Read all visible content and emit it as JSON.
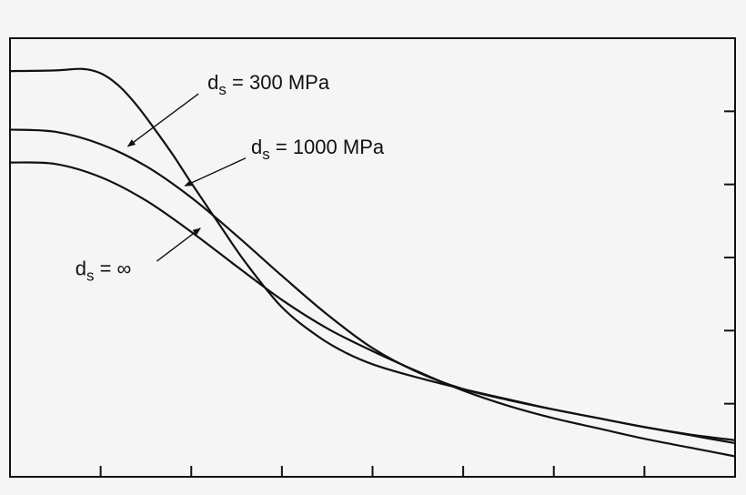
{
  "chart_data": {
    "type": "line",
    "title": "",
    "xlabel": "",
    "ylabel": "",
    "xlim": [
      0,
      8
    ],
    "ylim": [
      0,
      6
    ],
    "x_tick_count": 8,
    "y_tick_count": 6,
    "tick_labels_shown": false,
    "grid": false,
    "legend": "none",
    "line_color": "#111111",
    "series": [
      {
        "name": "d_s = 300 MPa",
        "label_main": "d",
        "label_sub": "s",
        "label_rest": " = 300 MPa",
        "x": [
          0,
          0.5,
          0.8,
          1.0,
          1.2,
          1.4,
          1.6,
          1.8,
          2.0,
          2.3,
          2.6,
          3.0,
          3.4,
          3.7,
          4.0,
          4.4,
          5.0,
          5.6,
          6.0,
          6.5,
          7.0,
          7.5,
          8.0
        ],
        "y": [
          5.55,
          5.56,
          5.58,
          5.52,
          5.35,
          5.08,
          4.75,
          4.4,
          4.02,
          3.47,
          2.93,
          2.32,
          1.92,
          1.7,
          1.54,
          1.39,
          1.2,
          1.03,
          0.92,
          0.8,
          0.68,
          0.57,
          0.46
        ]
      },
      {
        "name": "d_s = 1000 MPa",
        "label_main": "d",
        "label_sub": "s",
        "label_rest": " = 1000 MPa",
        "x": [
          0,
          0.5,
          1.0,
          1.5,
          2.0,
          2.5,
          3.0,
          3.5,
          4.0,
          4.5,
          5.0,
          5.5,
          6.0,
          6.5,
          7.0,
          7.5,
          8.0
        ],
        "y": [
          4.75,
          4.72,
          4.55,
          4.25,
          3.82,
          3.3,
          2.75,
          2.22,
          1.76,
          1.43,
          1.2,
          1.05,
          0.92,
          0.8,
          0.68,
          0.58,
          0.5
        ]
      },
      {
        "name": "d_s = ∞",
        "label_main": "d",
        "label_sub": "s",
        "label_rest": " = ∞",
        "x": [
          0,
          0.5,
          1.0,
          1.5,
          2.0,
          2.5,
          3.0,
          3.5,
          4.0,
          4.5,
          5.0,
          5.5,
          6.0,
          6.5,
          7.0,
          7.5,
          8.0
        ],
        "y": [
          4.3,
          4.28,
          4.1,
          3.78,
          3.35,
          2.88,
          2.42,
          2.03,
          1.72,
          1.44,
          1.18,
          0.97,
          0.8,
          0.66,
          0.52,
          0.4,
          0.28
        ]
      }
    ],
    "annotations": [
      {
        "series": 0,
        "text_x": 2.18,
        "text_y": 5.3,
        "arrow_from": [
          2.08,
          5.24
        ],
        "arrow_to": [
          1.3,
          4.52
        ]
      },
      {
        "series": 1,
        "text_x": 2.66,
        "text_y": 4.42,
        "arrow_from": [
          2.6,
          4.36
        ],
        "arrow_to": [
          1.93,
          3.98
        ]
      },
      {
        "series": 2,
        "text_x": 0.72,
        "text_y": 2.76,
        "arrow_from": [
          1.62,
          2.95
        ],
        "arrow_to": [
          2.1,
          3.4
        ]
      }
    ]
  }
}
